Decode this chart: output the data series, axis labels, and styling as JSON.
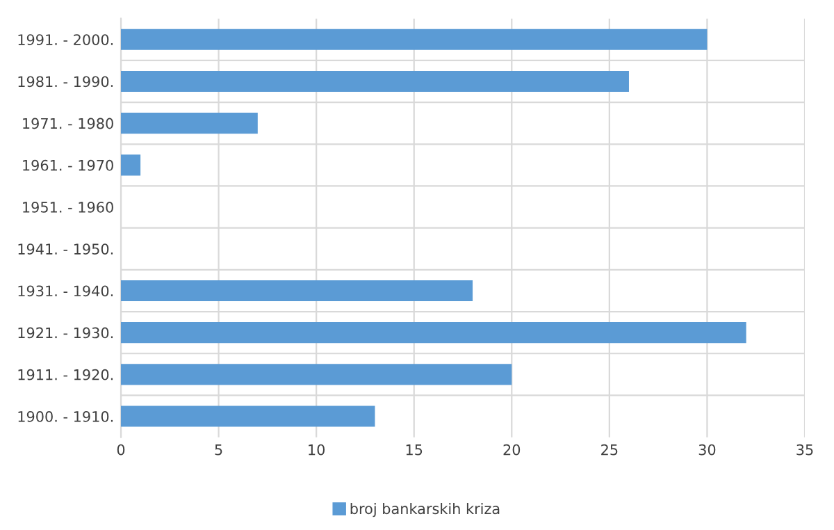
{
  "chart_data": {
    "type": "bar",
    "orientation": "horizontal",
    "categories": [
      "1991. - 2000.",
      "1981. - 1990.",
      "1971. - 1980",
      "1961. - 1970",
      "1951. - 1960",
      "1941. - 1950.",
      "1931. - 1940.",
      "1921. - 1930.",
      "1911. - 1920.",
      "1900. - 1910."
    ],
    "series": [
      {
        "name": "broj bankarskih kriza",
        "color": "#5b9bd5",
        "values": [
          30,
          26,
          7,
          1,
          0,
          0,
          18,
          32,
          20,
          13
        ]
      }
    ],
    "xlim": [
      0,
      35
    ],
    "xticks": [
      0,
      5,
      10,
      15,
      20,
      25,
      30,
      35
    ],
    "grid": true,
    "legend": "bottom"
  }
}
